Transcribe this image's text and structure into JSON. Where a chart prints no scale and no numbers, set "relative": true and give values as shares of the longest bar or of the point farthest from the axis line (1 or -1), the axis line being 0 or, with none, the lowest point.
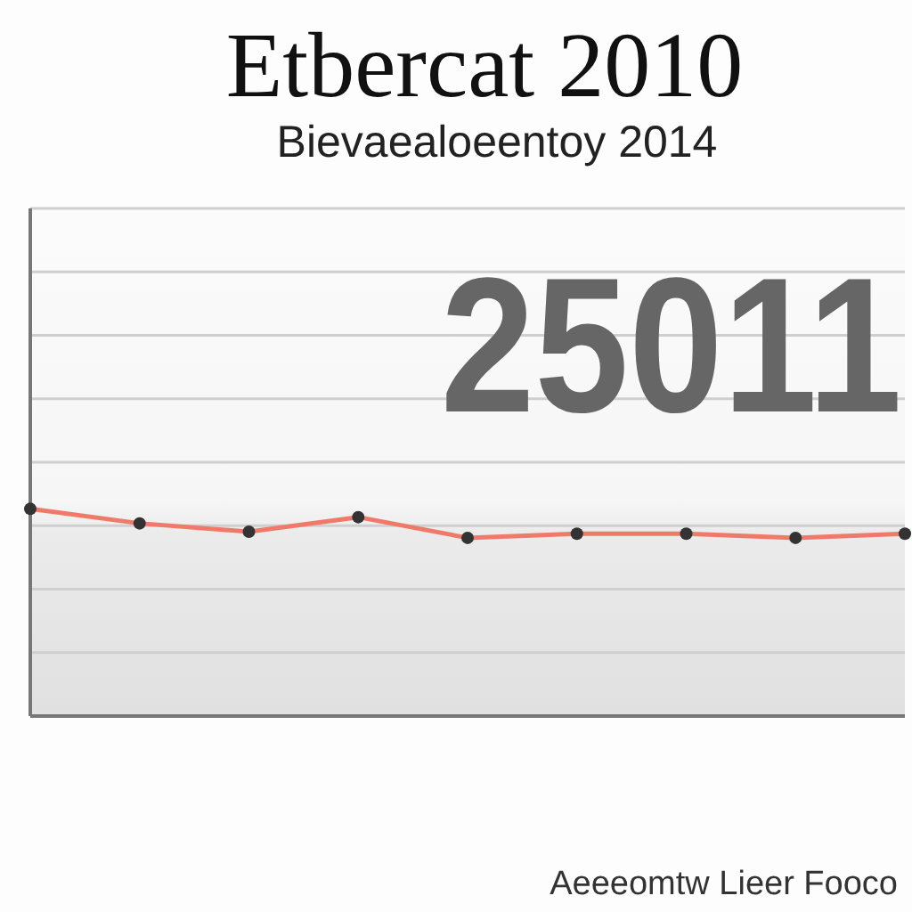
{
  "chart_data": {
    "type": "line",
    "title": "Etbercat 2010",
    "subtitle": "Bievaealoeentoy 2014",
    "annotations": [
      "25011",
      "Aeeeomtw Lieer Fooco"
    ],
    "categories": [
      null,
      null,
      null,
      null,
      null,
      null,
      null,
      null,
      null
    ],
    "values": [
      1,
      0.93,
      0.89,
      0.96,
      0.86,
      0.88,
      0.88,
      0.86,
      0.88
    ],
    "color": "#f07a6a",
    "relative": true,
    "grid": "y",
    "marker": "circle"
  }
}
